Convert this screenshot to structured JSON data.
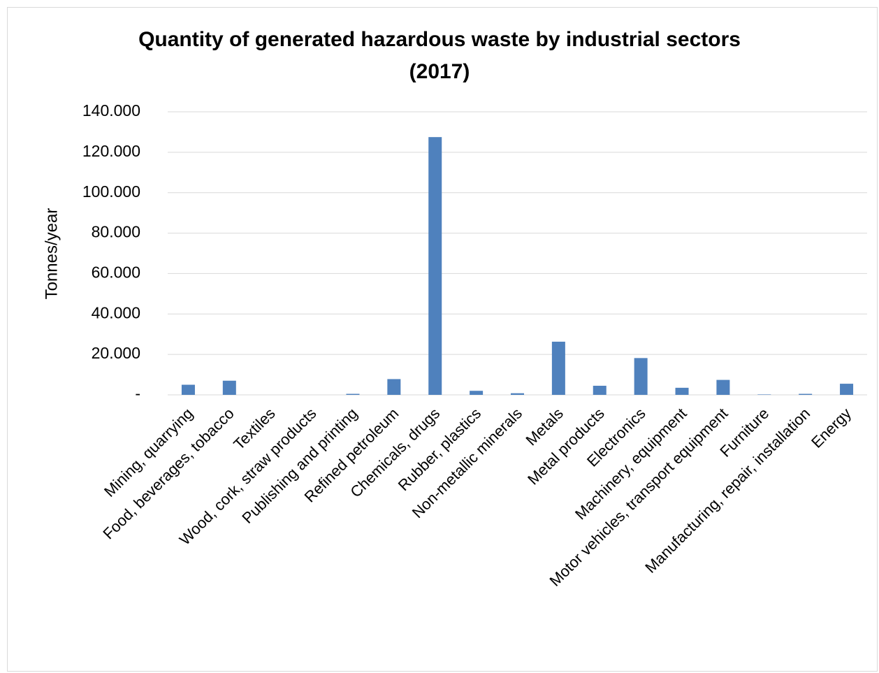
{
  "chart_data": {
    "type": "bar",
    "title_line1": "Quantity of generated hazardous waste by industrial sectors",
    "title_line2": "(2017)",
    "ylabel": "Tonnes/year",
    "xlabel": "",
    "ylim": [
      0,
      140000
    ],
    "y_ticks": [
      0,
      20000,
      40000,
      60000,
      80000,
      100000,
      120000,
      140000
    ],
    "y_tick_labels": [
      "-",
      "20.000",
      "40.000",
      "60.000",
      "80.000",
      "100.000",
      "120.000",
      "140.000"
    ],
    "grid": true,
    "bar_color": "#4f81bd",
    "categories": [
      "Mining, quarrying",
      "Food, beverages, tobacco",
      "Textiles",
      "Wood, cork, straw products",
      "Publishing and printing",
      "Refined petroleum",
      "Chemicals, drugs",
      "Rubber, plastics",
      "Non-metallic minerals",
      "Metals",
      "Metal products",
      "Electronics",
      "Machinery, equipment",
      "Motor vehicles, transport equipment",
      "Furniture",
      "Manufacturing, repair, installation",
      "Energy"
    ],
    "values": [
      5000,
      7000,
      0,
      0,
      500,
      7800,
      127500,
      2000,
      800,
      26300,
      4500,
      18200,
      3500,
      7400,
      200,
      500,
      5500
    ]
  }
}
